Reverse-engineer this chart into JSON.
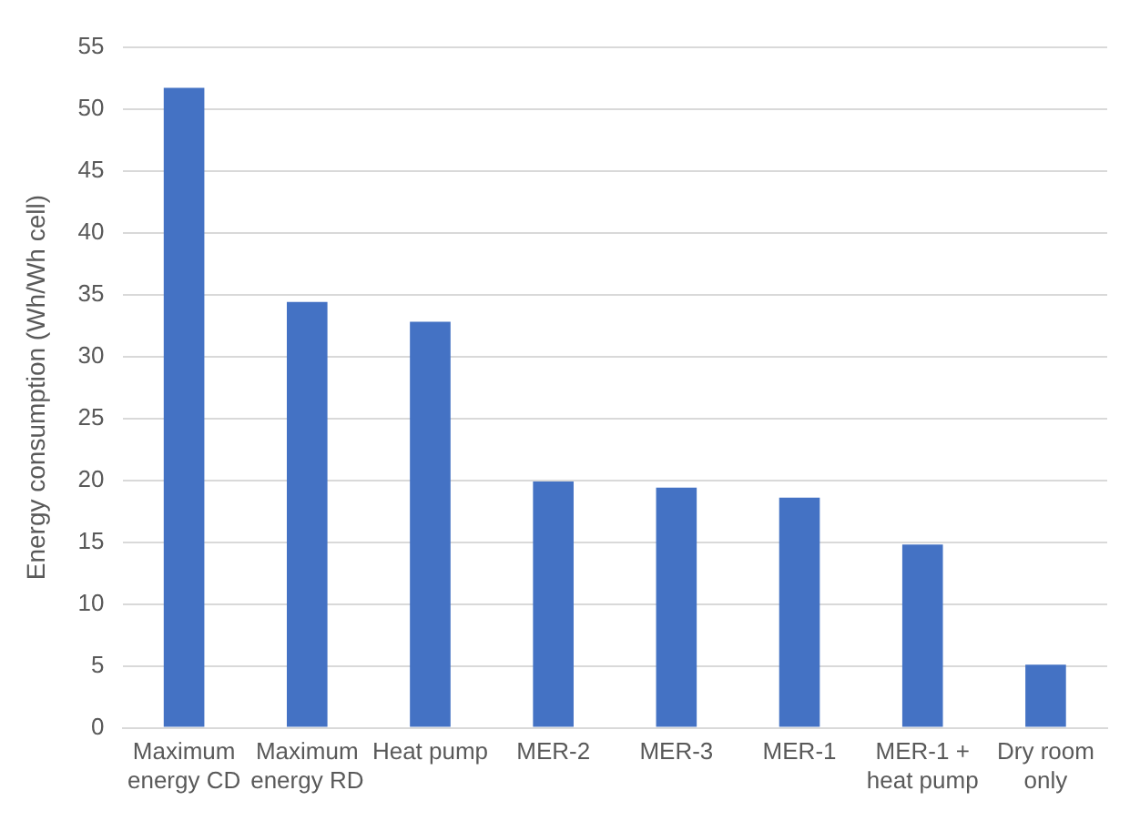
{
  "chart_data": {
    "type": "bar",
    "ylabel": "Energy consumption (Wh/Wh cell)",
    "categories": [
      "Maximum energy CD",
      "Maximum energy RD",
      "Heat pump",
      "MER-2",
      "MER-3",
      "MER-1",
      "MER-1 + heat pump",
      "Dry room only"
    ],
    "values": [
      51.7,
      34.4,
      32.8,
      19.9,
      19.4,
      18.6,
      14.8,
      5.1
    ],
    "color": "#4472c4",
    "ylim": [
      0,
      55
    ],
    "yticks": [
      0,
      5,
      10,
      15,
      20,
      25,
      30,
      35,
      40,
      45,
      50,
      55
    ],
    "grid": "y"
  }
}
